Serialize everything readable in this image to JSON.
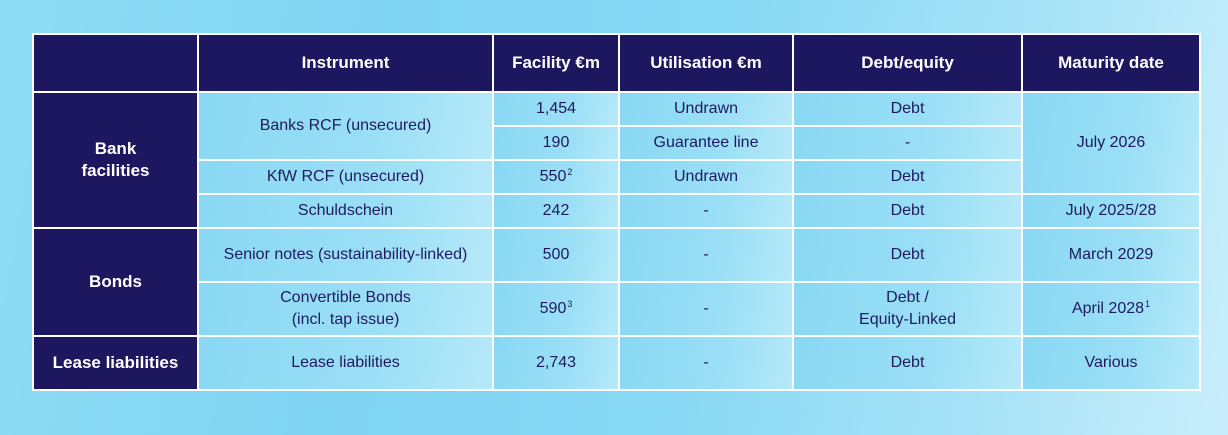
{
  "table": {
    "headers": {
      "blank": "",
      "instrument": "Instrument",
      "facility": "Facility €m",
      "utilisation": "Utilisation €m",
      "debt_equity": "Debt/equity",
      "maturity": "Maturity date"
    },
    "groups": {
      "bank": "Bank facilities",
      "bonds": "Bonds",
      "lease": "Lease liabilities"
    },
    "rows": [
      {
        "instrument": "Banks RCF (unsecured)",
        "facility": "1,454",
        "utilisation": "Undrawn",
        "debt_equity": "Debt",
        "maturity": "July 2026"
      },
      {
        "facility": "190",
        "utilisation": "Guarantee line",
        "debt_equity": "-"
      },
      {
        "instrument": "KfW RCF (unsecured)",
        "facility": "550",
        "facility_note": "2",
        "utilisation": "Undrawn",
        "debt_equity": "Debt"
      },
      {
        "instrument": "Schuldschein",
        "facility": "242",
        "utilisation": "-",
        "debt_equity": "Debt",
        "maturity": "July 2025/28"
      },
      {
        "instrument": "Senior notes (sustainability-linked)",
        "facility": "500",
        "utilisation": "-",
        "debt_equity": "Debt",
        "maturity": "March 2029"
      },
      {
        "instrument_line1": "Convertible Bonds",
        "instrument_line2": "(incl. tap issue)",
        "facility": "590",
        "facility_note": "3",
        "utilisation": "-",
        "debt_equity_line1": "Debt /",
        "debt_equity_line2": "Equity-Linked",
        "maturity": "April 2028",
        "maturity_note": "1"
      },
      {
        "instrument": "Lease liabilities",
        "facility": "2,743",
        "utilisation": "-",
        "debt_equity": "Debt",
        "maturity": "Various"
      }
    ]
  }
}
